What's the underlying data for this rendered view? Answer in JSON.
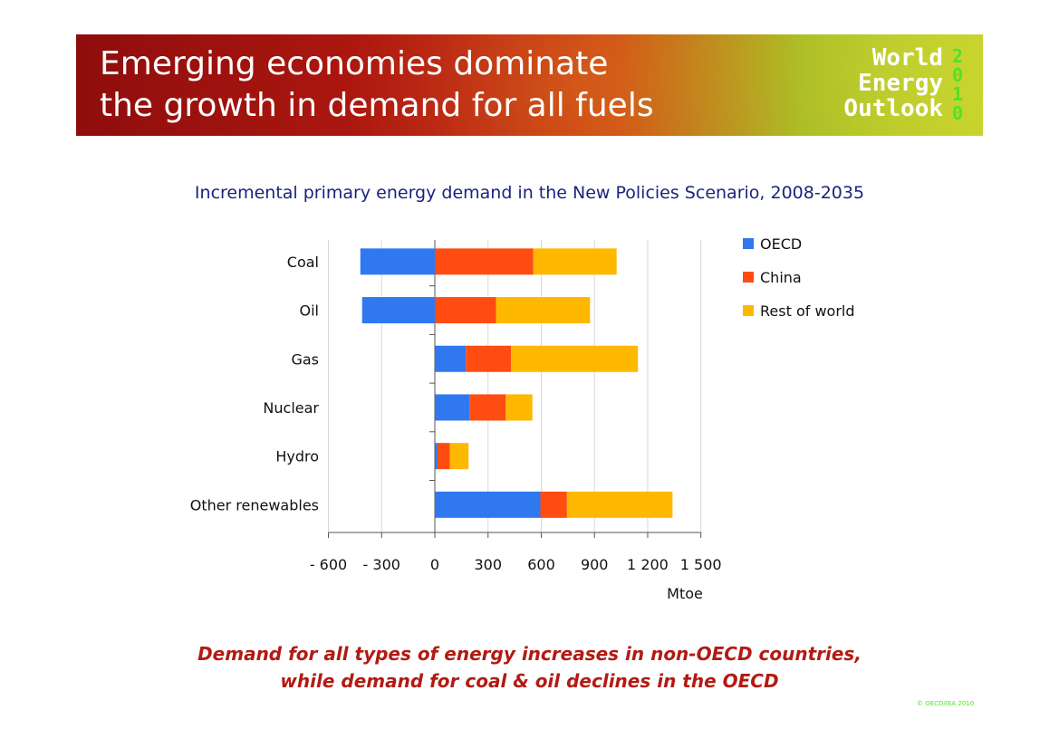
{
  "header": {
    "title_line1": "Emerging economies dominate",
    "title_line2": "the growth in demand for all fuels",
    "logo": {
      "line1": "World",
      "line2": "Energy",
      "line3": "Outlook",
      "year": "2010"
    }
  },
  "chart_data": {
    "type": "bar",
    "orientation": "horizontal",
    "stacked": true,
    "title": "Incremental primary energy demand in the New Policies Scenario, 2008-2035",
    "xlabel": "Mtoe",
    "ylabel": "",
    "xlim": [
      -600,
      1500
    ],
    "xticks": [
      -600,
      -300,
      0,
      300,
      600,
      900,
      1200,
      1500
    ],
    "xtick_labels": [
      "- 600",
      "- 300",
      "0",
      "300",
      "600",
      "900",
      "1 200",
      "1 500"
    ],
    "categories": [
      "Coal",
      "Oil",
      "Gas",
      "Nuclear",
      "Hydro",
      "Other renewables"
    ],
    "series": [
      {
        "name": "OECD",
        "color": "#2f78f0",
        "values": [
          -420,
          -410,
          175,
          195,
          15,
          595
        ]
      },
      {
        "name": "China",
        "color": "#ff4d12",
        "values": [
          555,
          345,
          255,
          205,
          70,
          150
        ]
      },
      {
        "name": "Rest of world",
        "color": "#ffb800",
        "values": [
          470,
          530,
          715,
          150,
          105,
          595
        ]
      }
    ],
    "legend_position": "right",
    "grid": "vertical"
  },
  "footer": {
    "caption_line1": "Demand for all types of energy increases in non-OECD countries,",
    "caption_line2": "while demand for coal & oil declines in the OECD",
    "copyright": "© OECD/IEA 2010"
  },
  "colors": {
    "banner_dark": "#8e0d0d",
    "banner_green": "#c3cc23",
    "subtitle": "#1b237e",
    "caption": "#b21b14",
    "logo_accent": "#4ee32a"
  }
}
